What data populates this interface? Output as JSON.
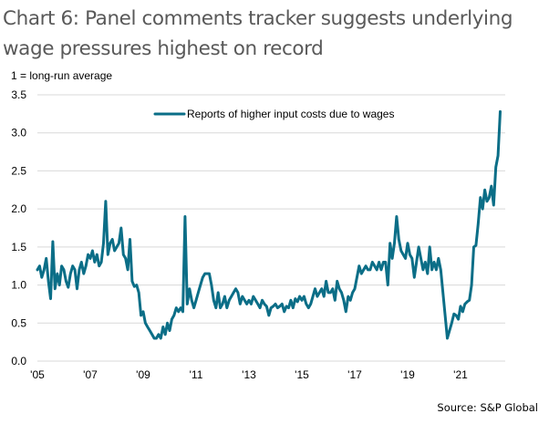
{
  "title": "Chart 6: Panel comments tracker suggests underlying wage pressures highest on record",
  "source": "Source: S&P Global",
  "chart_data": {
    "type": "line",
    "title": "Chart 6: Panel comments tracker suggests underlying wage pressures highest on record",
    "ylabel": "1 = long-run average",
    "xlabel": "",
    "ylim": [
      0,
      3.5
    ],
    "yticks": [
      0.0,
      0.5,
      1.0,
      1.5,
      2.0,
      2.5,
      3.0,
      3.5
    ],
    "ytick_labels": [
      "0.0",
      "0.5",
      "1.0",
      "1.5",
      "2.0",
      "2.5",
      "3.0",
      "3.5"
    ],
    "xlim": [
      2005.0,
      2022.75
    ],
    "xticks": [
      2005,
      2007,
      2009,
      2011,
      2013,
      2015,
      2017,
      2019,
      2021
    ],
    "xtick_labels": [
      "'05",
      "'07",
      "'09",
      "'11",
      "'13",
      "'15",
      "'17",
      "'19",
      "'21"
    ],
    "grid": "horizontal",
    "legend_position": "top-center",
    "series": [
      {
        "name": "Reports of higher input costs due to wages",
        "color": "#0b6e87",
        "start": 2005.0,
        "frequency": "monthly",
        "values": [
          1.2,
          1.25,
          1.1,
          1.2,
          1.35,
          1.05,
          0.82,
          1.57,
          0.95,
          1.15,
          1.0,
          1.25,
          1.2,
          1.05,
          0.97,
          1.15,
          1.25,
          1.2,
          0.95,
          1.2,
          1.3,
          1.15,
          1.25,
          1.4,
          1.35,
          1.45,
          1.3,
          1.4,
          1.25,
          1.3,
          1.55,
          2.1,
          1.4,
          1.55,
          1.6,
          1.45,
          1.5,
          1.55,
          1.75,
          1.4,
          1.35,
          1.2,
          1.6,
          1.05,
          0.98,
          1.0,
          0.9,
          0.6,
          0.65,
          0.5,
          0.45,
          0.4,
          0.35,
          0.3,
          0.3,
          0.35,
          0.3,
          0.45,
          0.35,
          0.5,
          0.4,
          0.55,
          0.6,
          0.7,
          0.65,
          0.7,
          0.65,
          1.9,
          0.75,
          0.95,
          0.8,
          0.7,
          0.8,
          0.9,
          1.0,
          1.1,
          1.15,
          1.15,
          1.15,
          1.0,
          0.8,
          0.7,
          0.9,
          0.7,
          0.75,
          0.85,
          0.7,
          0.8,
          0.85,
          0.9,
          0.95,
          0.9,
          0.75,
          0.85,
          0.8,
          0.75,
          0.8,
          0.75,
          0.85,
          0.8,
          0.75,
          0.7,
          0.8,
          0.75,
          0.72,
          0.6,
          0.7,
          0.72,
          0.75,
          0.7,
          0.72,
          0.75,
          0.65,
          0.72,
          0.7,
          0.8,
          0.7,
          0.82,
          0.78,
          0.85,
          0.8,
          0.85,
          0.75,
          0.7,
          0.75,
          0.85,
          0.95,
          0.85,
          0.9,
          0.95,
          0.85,
          1.05,
          0.9,
          0.9,
          0.95,
          0.8,
          1.05,
          0.95,
          0.9,
          0.8,
          0.65,
          0.85,
          0.8,
          0.9,
          0.95,
          1.1,
          1.25,
          1.15,
          1.2,
          1.25,
          1.2,
          1.2,
          1.3,
          1.25,
          1.2,
          1.3,
          1.2,
          1.3,
          1.3,
          1.0,
          1.55,
          1.35,
          1.55,
          1.9,
          1.6,
          1.45,
          1.4,
          1.35,
          1.55,
          1.4,
          1.35,
          1.1,
          1.3,
          1.5,
          1.35,
          1.2,
          1.3,
          1.15,
          1.5,
          1.2,
          1.3,
          1.2,
          1.35,
          1.2,
          0.9,
          0.6,
          0.3,
          0.4,
          0.5,
          0.62,
          0.6,
          0.55,
          0.72,
          0.65,
          0.75,
          0.78,
          0.8,
          1.0,
          1.5,
          1.52,
          1.8,
          2.15,
          2.0,
          2.25,
          2.1,
          2.15,
          2.3,
          2.05,
          2.55,
          2.7,
          3.28
        ]
      }
    ]
  }
}
